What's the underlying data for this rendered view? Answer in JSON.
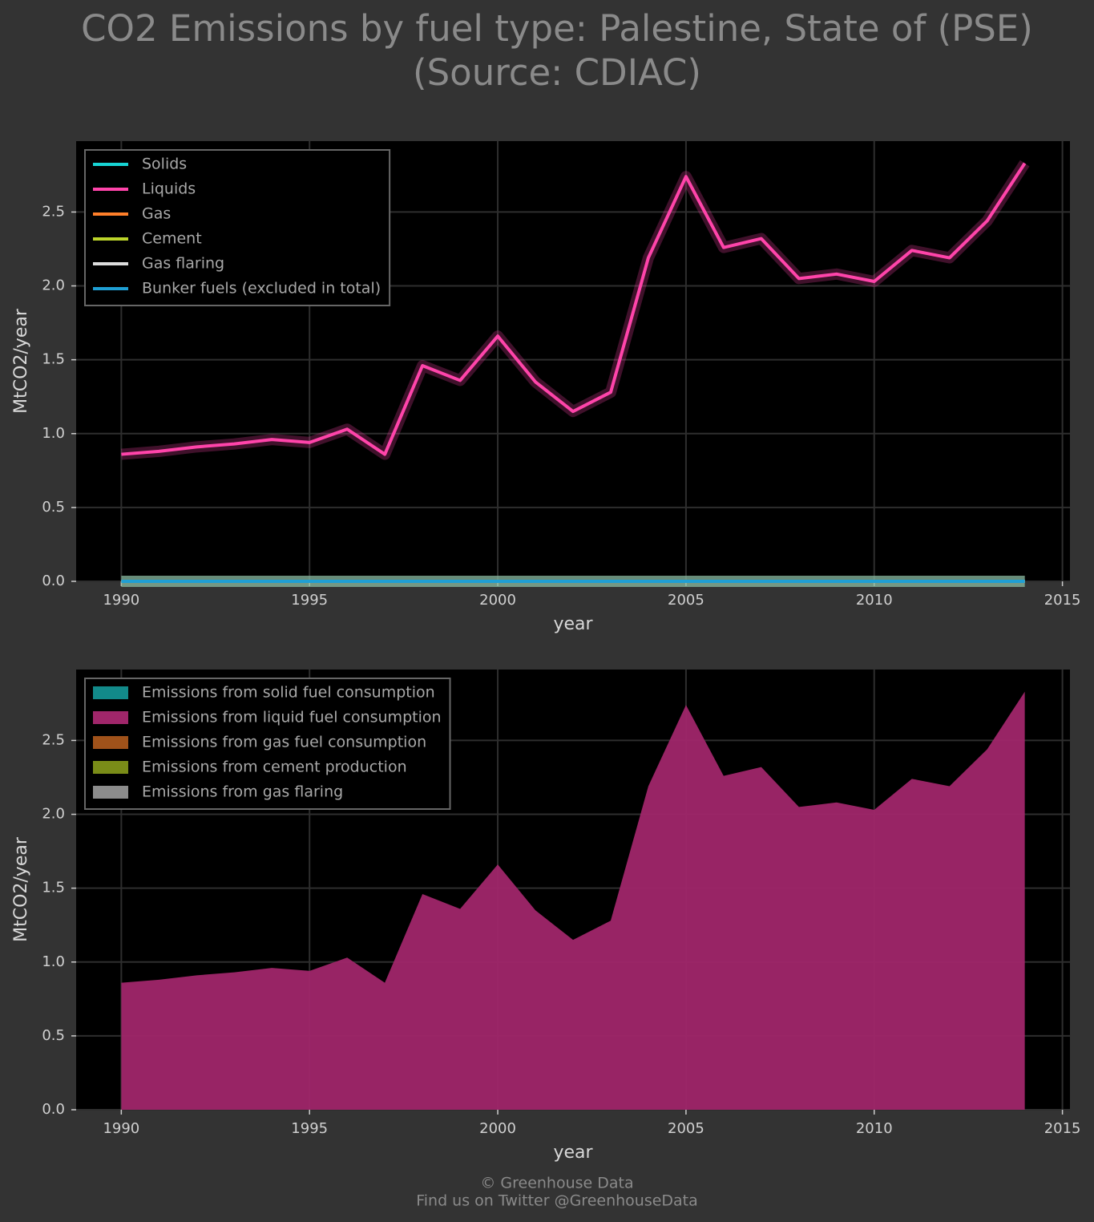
{
  "chart_data": [
    {
      "type": "line",
      "title": "CO2 Emissions by fuel type: Palestine, State of (PSE) (Source: CDIAC)",
      "x_label": "year",
      "y_label": "MtCO2/year",
      "legend": "upper left",
      "grid": true,
      "x": [
        1990,
        1991,
        1992,
        1993,
        1994,
        1995,
        1996,
        1997,
        1998,
        1999,
        2000,
        2001,
        2002,
        2003,
        2004,
        2005,
        2006,
        2007,
        2008,
        2009,
        2010,
        2011,
        2012,
        2013,
        2014
      ],
      "xlim": [
        1988.8,
        2015.2
      ],
      "xticks": [
        1990,
        1995,
        2000,
        2005,
        2010,
        2015
      ],
      "ylim": [
        0,
        2.98
      ],
      "yticks": [
        {
          "value": 0,
          "label": "0.0"
        },
        0.5,
        {
          "value": 1,
          "label": "1.0"
        },
        1.5,
        {
          "value": 2,
          "label": "2.0"
        },
        2.5
      ],
      "series": [
        {
          "name": "Solids",
          "color": "#17d4d4",
          "values": [
            0,
            0,
            0,
            0,
            0,
            0,
            0,
            0,
            0,
            0,
            0,
            0,
            0,
            0,
            0,
            0,
            0,
            0,
            0,
            0,
            0,
            0,
            0,
            0,
            0
          ]
        },
        {
          "name": "Liquids",
          "color": "#ff44aa",
          "values": [
            0.86,
            0.88,
            0.91,
            0.93,
            0.96,
            0.94,
            1.03,
            0.86,
            1.46,
            1.36,
            1.66,
            1.35,
            1.15,
            1.28,
            2.19,
            2.74,
            2.26,
            2.32,
            2.05,
            2.08,
            2.03,
            2.24,
            2.19,
            2.44,
            2.83
          ]
        },
        {
          "name": "Gas",
          "color": "#ff7f2a",
          "values": [
            0,
            0,
            0,
            0,
            0,
            0,
            0,
            0,
            0,
            0,
            0,
            0,
            0,
            0,
            0,
            0,
            0,
            0,
            0,
            0,
            0,
            0,
            0,
            0,
            0
          ]
        },
        {
          "name": "Cement",
          "color": "#bcd42a",
          "values": [
            0,
            0,
            0,
            0,
            0,
            0,
            0,
            0,
            0,
            0,
            0,
            0,
            0,
            0,
            0,
            0,
            0,
            0,
            0,
            0,
            0,
            0,
            0,
            0,
            0
          ]
        },
        {
          "name": "Gas flaring",
          "color": "#dddddd",
          "values": [
            0,
            0,
            0,
            0,
            0,
            0,
            0,
            0,
            0,
            0,
            0,
            0,
            0,
            0,
            0,
            0,
            0,
            0,
            0,
            0,
            0,
            0,
            0,
            0,
            0
          ]
        },
        {
          "name": "Bunker fuels (excluded in total)",
          "color": "#1f9fd4",
          "values": [
            0,
            0,
            0,
            0,
            0,
            0,
            0,
            0,
            0,
            0,
            0,
            0,
            0,
            0,
            0,
            0,
            0,
            0,
            0,
            0,
            0,
            0,
            0,
            0,
            0
          ]
        }
      ]
    },
    {
      "type": "stacked_area",
      "x_label": "year",
      "y_label": "MtCO2/year",
      "legend": "upper left",
      "grid": true,
      "x": [
        1990,
        1991,
        1992,
        1993,
        1994,
        1995,
        1996,
        1997,
        1998,
        1999,
        2000,
        2001,
        2002,
        2003,
        2004,
        2005,
        2006,
        2007,
        2008,
        2009,
        2010,
        2011,
        2012,
        2013,
        2014
      ],
      "xlim": [
        1988.8,
        2015.2
      ],
      "xticks": [
        1990,
        1995,
        2000,
        2005,
        2010,
        2015
      ],
      "ylim": [
        0,
        2.98
      ],
      "yticks": [
        {
          "value": 0,
          "label": "0.0"
        },
        0.5,
        {
          "value": 1,
          "label": "1.0"
        },
        1.5,
        {
          "value": 2,
          "label": "2.0"
        },
        2.5
      ],
      "series": [
        {
          "name": "Emissions from solid fuel consumption",
          "color": "#128a8a",
          "values": [
            0,
            0,
            0,
            0,
            0,
            0,
            0,
            0,
            0,
            0,
            0,
            0,
            0,
            0,
            0,
            0,
            0,
            0,
            0,
            0,
            0,
            0,
            0,
            0,
            0
          ]
        },
        {
          "name": "Emissions from liquid fuel consumption",
          "color": "#a0266a",
          "values": [
            0.86,
            0.88,
            0.91,
            0.93,
            0.96,
            0.94,
            1.03,
            0.86,
            1.46,
            1.36,
            1.66,
            1.35,
            1.15,
            1.28,
            2.19,
            2.74,
            2.26,
            2.32,
            2.05,
            2.08,
            2.03,
            2.24,
            2.19,
            2.44,
            2.83
          ]
        },
        {
          "name": "Emissions from gas fuel consumption",
          "color": "#a0521a",
          "values": [
            0,
            0,
            0,
            0,
            0,
            0,
            0,
            0,
            0,
            0,
            0,
            0,
            0,
            0,
            0,
            0,
            0,
            0,
            0,
            0,
            0,
            0,
            0,
            0,
            0
          ]
        },
        {
          "name": "Emissions from cement production",
          "color": "#7a8c18",
          "values": [
            0,
            0,
            0,
            0,
            0,
            0,
            0,
            0,
            0,
            0,
            0,
            0,
            0,
            0,
            0,
            0,
            0,
            0,
            0,
            0,
            0,
            0,
            0,
            0,
            0
          ]
        },
        {
          "name": "Emissions from gas flaring",
          "color": "#8c8c8c",
          "values": [
            0,
            0,
            0,
            0,
            0,
            0,
            0,
            0,
            0,
            0,
            0,
            0,
            0,
            0,
            0,
            0,
            0,
            0,
            0,
            0,
            0,
            0,
            0,
            0,
            0
          ]
        }
      ]
    }
  ],
  "footer": [
    "© Greenhouse Data",
    "Find us on Twitter @GreenhouseData"
  ]
}
